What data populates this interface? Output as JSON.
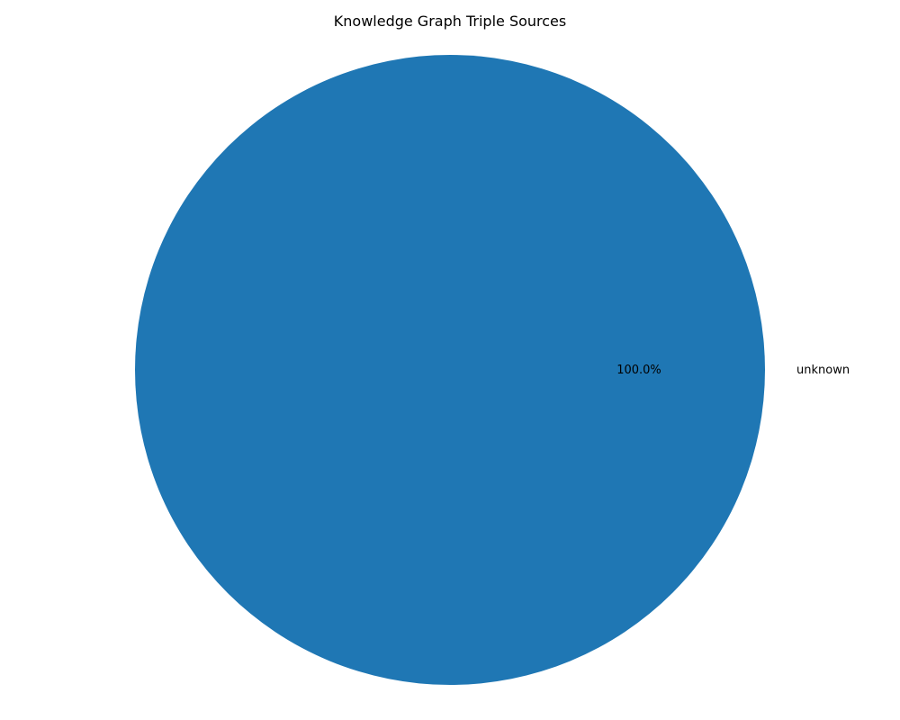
{
  "chart_data": {
    "type": "pie",
    "title": "Knowledge Graph Triple Sources",
    "slices": [
      {
        "label": "unknown",
        "value": 100.0,
        "pct_label": "100.0%",
        "color": "#1f77b4"
      }
    ]
  }
}
